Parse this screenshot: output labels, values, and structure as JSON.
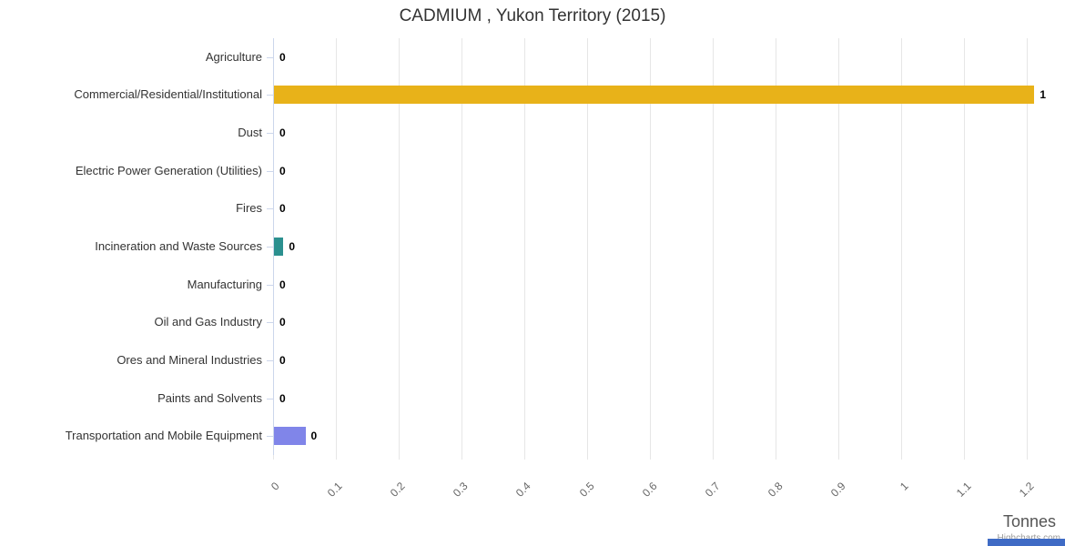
{
  "chart_data": {
    "type": "bar",
    "title": "CADMIUM , Yukon Territory (2015)",
    "categories": [
      "Agriculture",
      "Commercial/Residential/Institutional",
      "Dust",
      "Electric Power Generation (Utilities)",
      "Fires",
      "Incineration and Waste Sources",
      "Manufacturing",
      "Oil and Gas Industry",
      "Ores and Mineral Industries",
      "Paints and Solvents",
      "Transportation and Mobile Equipment"
    ],
    "values": [
      0,
      1.21,
      0,
      0,
      0,
      0.015,
      0,
      0,
      0,
      0,
      0.05
    ],
    "value_labels": [
      "0",
      "1",
      "0",
      "0",
      "0",
      "0",
      "0",
      "0",
      "0",
      "0",
      "0"
    ],
    "bar_colors": [
      "#7cb5ec",
      "#e8b219",
      "#90ed7d",
      "#f7a35c",
      "#f15c80",
      "#2b908f",
      "#e4d354",
      "#f45b5b",
      "#91e8e1",
      "#434348",
      "#8085e9"
    ],
    "xlabel": "Tonnes",
    "xlim": [
      0,
      1.25
    ],
    "x_ticks": [
      "0",
      "0.1",
      "0.2",
      "0.3",
      "0.4",
      "0.5",
      "0.6",
      "0.7",
      "0.8",
      "0.9",
      "1",
      "1.1",
      "1.2"
    ],
    "grid": true,
    "legend": "none"
  },
  "credits": "Highcharts.com",
  "colors": {
    "grid": "#e6e6e6",
    "axis": "#ccd6eb",
    "title": "#333333",
    "category_label": "#333333",
    "x_tick_label": "#666666",
    "data_label": "#000000",
    "axis_title": "#555555",
    "credits": "#999999",
    "corner_accent": "#3f6bc5"
  }
}
